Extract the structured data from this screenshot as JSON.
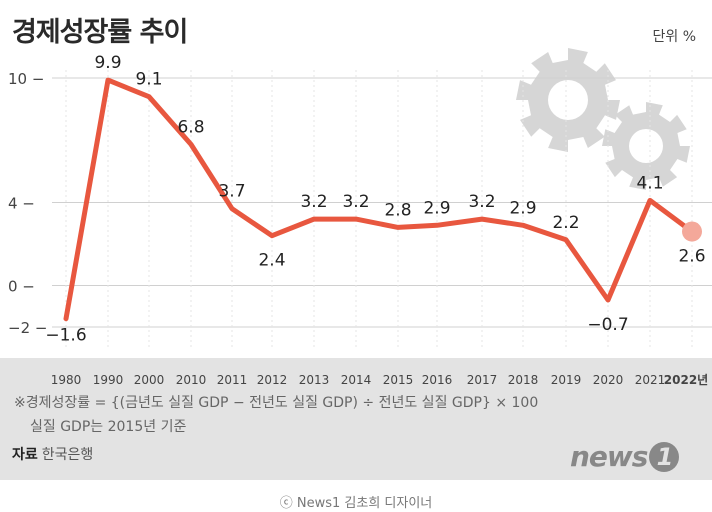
{
  "title": "경제성장률 추이",
  "unit_label": "단위 %",
  "chart_data": {
    "type": "line",
    "title": "경제성장률 추이",
    "unit": "단위 %",
    "categories": [
      "1980",
      "1990",
      "2000",
      "2010",
      "2011",
      "2012",
      "2013",
      "2014",
      "2015",
      "2016",
      "2017",
      "2018",
      "2019",
      "2020",
      "2021",
      "2022년"
    ],
    "values": [
      -1.6,
      9.9,
      9.1,
      6.8,
      3.7,
      2.4,
      3.2,
      3.2,
      2.8,
      2.9,
      3.2,
      2.9,
      2.2,
      -0.7,
      4.1,
      2.6
    ],
    "value_labels": [
      "−1.6",
      "9.9",
      "9.1",
      "6.8",
      "3.7",
      "2.4",
      "3.2",
      "3.2",
      "2.8",
      "2.9",
      "3.2",
      "2.9",
      "2.2",
      "−0.7",
      "4.1",
      "2.6"
    ],
    "y_ticks": [
      10,
      4,
      0,
      -2
    ],
    "y_tick_labels": [
      "10 −",
      "4 −",
      "0 −",
      "−2 −"
    ],
    "ylim": [
      -2,
      10
    ],
    "grid": "horizontal",
    "line_color": "#e8573f",
    "highlight_last": true
  },
  "footnote_line1": "※경제성장률 = {(금년도 실질 GDP − 전년도 실질 GDP) ÷ 전년도 실질 GDP} × 100",
  "footnote_line2": "실질 GDP는 2015년 기준",
  "source_label": "자료",
  "source_value": "한국은행",
  "brand_text": "news",
  "brand_number": "1",
  "credit": "ⓒ News1 김초희 디자이너",
  "icons": [
    "gear-icon",
    "gear-icon"
  ]
}
